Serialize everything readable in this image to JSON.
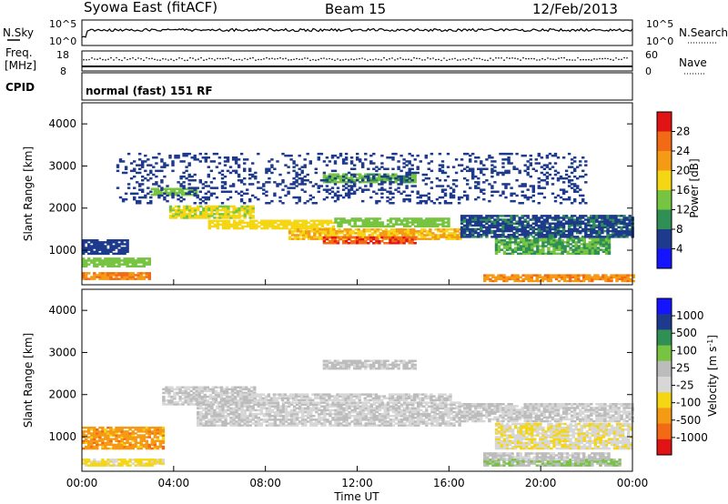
{
  "header": {
    "station": "Syowa East (fitACF)",
    "beam": "Beam 15",
    "date": "12/Feb/2013"
  },
  "noise_panel": {
    "left_label": "N.Sky",
    "right_label": "N.Search",
    "left_ticks": [
      "10^5",
      "10^0"
    ],
    "right_ticks": [
      "10^5",
      "10^0"
    ]
  },
  "freq_panel": {
    "left_label_1": "Freq.",
    "left_label_2": "[MHz]",
    "right_label": "Nave",
    "left_ticks": [
      "18",
      "8"
    ],
    "right_ticks": [
      "60",
      "0"
    ]
  },
  "cpid_panel": {
    "label": "CPID",
    "text": "normal (fast) 151 RF"
  },
  "colors": {
    "power_scale": [
      "#1414ff",
      "#1e3a8c",
      "#2f8f54",
      "#76c442",
      "#f5d614",
      "#f59a14",
      "#f26a14",
      "#e01414"
    ],
    "velocity_scale": [
      "#1414ff",
      "#1e3a8c",
      "#2f8f54",
      "#76c442",
      "#bcbcbc",
      "#d7d7d7",
      "#f5d614",
      "#f59a14",
      "#f26a14",
      "#e01414"
    ]
  },
  "chart_data": [
    {
      "type": "heatmap",
      "panel": "power",
      "xlabel": "Time UT",
      "ylabel": "Slant Range [km]",
      "x_ticks": [
        "00:00",
        "04:00",
        "08:00",
        "12:00",
        "16:00",
        "20:00",
        "00:00"
      ],
      "y_ticks": [
        "1000",
        "2000",
        "3000",
        "4000"
      ],
      "xlim": [
        0,
        24
      ],
      "ylim": [
        180,
        4500
      ],
      "colorbar": {
        "label": "Power [dB]",
        "ticks": [
          "28",
          "24",
          "20",
          "16",
          "12",
          "8",
          "4"
        ],
        "range": [
          0,
          32
        ]
      },
      "bands": [
        {
          "t": [
            0.0,
            3.0
          ],
          "r0": 300,
          "r1": 440,
          "v": 24
        },
        {
          "t": [
            0.0,
            3.0
          ],
          "r0": 600,
          "r1": 820,
          "v": 14
        },
        {
          "t": [
            0.0,
            2.0
          ],
          "r0": 900,
          "r1": 1250,
          "v": 6
        },
        {
          "t": [
            3.0,
            5.0
          ],
          "r0": 2300,
          "r1": 2450,
          "v": 14
        },
        {
          "t": [
            3.8,
            7.5
          ],
          "r0": 1750,
          "r1": 2050,
          "v": 17
        },
        {
          "t": [
            5.5,
            11.0
          ],
          "r0": 1500,
          "r1": 1700,
          "v": 18
        },
        {
          "t": [
            9.0,
            16.5
          ],
          "r0": 1250,
          "r1": 1500,
          "v": 20
        },
        {
          "t": [
            10.5,
            14.5
          ],
          "r0": 1150,
          "r1": 1300,
          "v": 27
        },
        {
          "t": [
            11.0,
            16.0
          ],
          "r0": 1550,
          "r1": 1750,
          "v": 14
        },
        {
          "t": [
            10.5,
            14.5
          ],
          "r0": 2600,
          "r1": 2800,
          "v": 13
        },
        {
          "t": [
            17.5,
            24.0
          ],
          "r0": 250,
          "r1": 430,
          "v": 23
        },
        {
          "t": [
            18.0,
            23.0
          ],
          "r0": 900,
          "r1": 1300,
          "v": 12
        },
        {
          "t": [
            16.5,
            24.0
          ],
          "r0": 1300,
          "r1": 1800,
          "v": 7
        },
        {
          "t": [
            1.5,
            22.0
          ],
          "r0": 2100,
          "r1": 3300,
          "v": 6
        }
      ]
    },
    {
      "type": "heatmap",
      "panel": "velocity",
      "xlabel": "Time UT",
      "ylabel": "Slant Range [km]",
      "x_ticks": [
        "00:00",
        "04:00",
        "08:00",
        "12:00",
        "16:00",
        "20:00",
        "00:00"
      ],
      "y_ticks": [
        "1000",
        "2000",
        "3000",
        "4000"
      ],
      "xlim": [
        0,
        24
      ],
      "ylim": [
        180,
        4500
      ],
      "colorbar": {
        "label": "Velocity [m s^-1]",
        "ticks": [
          "1000",
          "500",
          "100",
          "25",
          "-25",
          "-100",
          "-500",
          "-1000"
        ],
        "range": [
          -1200,
          1200
        ]
      },
      "bands": [
        {
          "t": [
            0.0,
            3.5
          ],
          "r0": 300,
          "r1": 450,
          "v": -300
        },
        {
          "t": [
            0.0,
            3.5
          ],
          "r0": 700,
          "r1": 1200,
          "v": -600
        },
        {
          "t": [
            3.5,
            7.5
          ],
          "r0": 1750,
          "r1": 2200,
          "v": 0
        },
        {
          "t": [
            5.0,
            16.5
          ],
          "r0": 1250,
          "r1": 1800,
          "v": 0
        },
        {
          "t": [
            7.0,
            16.0
          ],
          "r0": 1850,
          "r1": 2000,
          "v": 0
        },
        {
          "t": [
            10.5,
            14.5
          ],
          "r0": 2600,
          "r1": 2800,
          "v": 60
        },
        {
          "t": [
            17.5,
            23.5
          ],
          "r0": 300,
          "r1": 450,
          "v": 250
        },
        {
          "t": [
            17.5,
            23.0
          ],
          "r0": 450,
          "r1": 600,
          "v": 60
        },
        {
          "t": [
            18.0,
            24.0
          ],
          "r0": 700,
          "r1": 1300,
          "v": -200
        },
        {
          "t": [
            16.5,
            24.0
          ],
          "r0": 1350,
          "r1": 1800,
          "v": 0
        }
      ]
    }
  ]
}
